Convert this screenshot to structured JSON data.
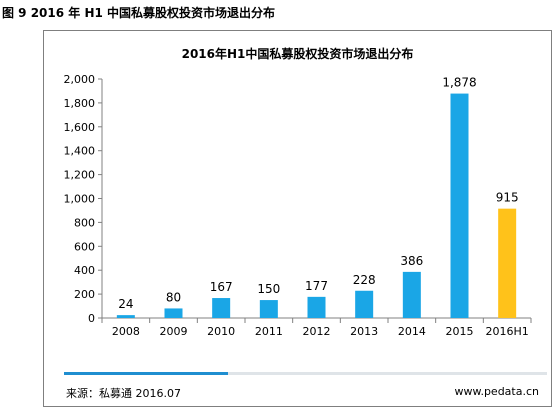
{
  "figure_caption": "图 9 2016 年 H1 中国私募股权投资市场退出分布",
  "footer": {
    "source": "来源：私募通 2016.07",
    "url": "www.pedata.cn"
  },
  "progress": {
    "fill_fraction": 0.34,
    "fill_color": "#1f8ed0"
  },
  "colors": {
    "bar": "#1aa6e6",
    "bar_highlight": "#ffc21a"
  },
  "chart_data": {
    "type": "bar",
    "title": "2016年H1中国私募股权投资市场退出分布",
    "xlabel": "",
    "ylabel": "",
    "categories": [
      "2008",
      "2009",
      "2010",
      "2011",
      "2012",
      "2013",
      "2014",
      "2015",
      "2016H1"
    ],
    "values": [
      24,
      80,
      167,
      150,
      177,
      228,
      386,
      1878,
      915
    ],
    "data_labels": [
      "24",
      "80",
      "167",
      "150",
      "177",
      "228",
      "386",
      "1,878",
      "915"
    ],
    "highlight_category": "2016H1",
    "ylim": [
      0,
      2000
    ],
    "yticks": [
      0,
      200,
      400,
      600,
      800,
      1000,
      1200,
      1400,
      1600,
      1800,
      2000
    ],
    "ytick_labels": [
      "0",
      "200",
      "400",
      "600",
      "800",
      "1,000",
      "1,200",
      "1,400",
      "1,600",
      "1,800",
      "2,000"
    ],
    "grid": false,
    "legend": "none"
  }
}
